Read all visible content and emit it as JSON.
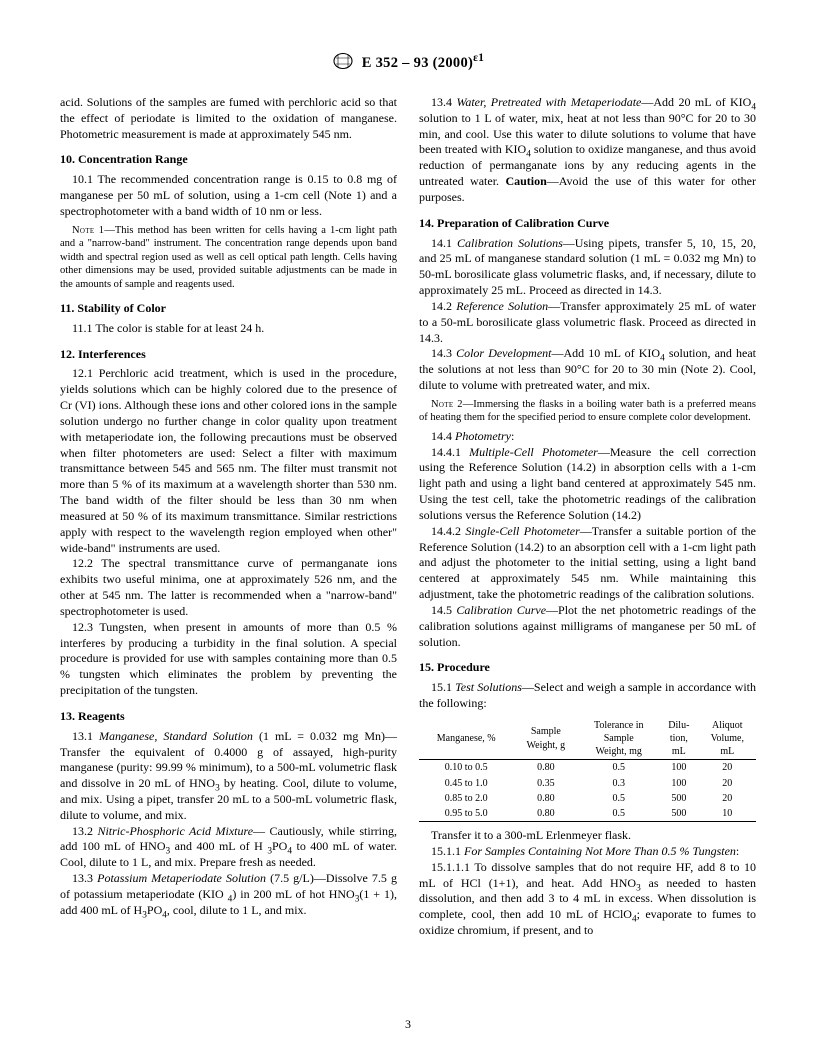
{
  "header": {
    "designation": "E 352 – 93 (2000)",
    "epsilon": "ε1"
  },
  "intro_tail": "acid. Solutions of the samples are fumed with perchloric acid so that the effect of periodate is limited to the oxidation of manganese. Photometric measurement is made at approximately 545 nm.",
  "s10": {
    "title": "10.  Concentration Range",
    "p1": "10.1 The recommended concentration range is 0.15 to 0.8 mg of manganese per 50 mL of solution, using a 1-cm cell (Note 1) and a spectrophotometer with a band width of 10 nm or less.",
    "note1_label": "Note 1",
    "note1": "—This method has been written for cells having a 1-cm light path and a \"narrow-band\" instrument. The concentration range depends upon band width and spectral region used as well as cell optical path length. Cells having other dimensions may be used, provided suitable adjustments can be made in the amounts of sample and reagents used."
  },
  "s11": {
    "title": "11.  Stability of Color",
    "p1": "11.1 The color is stable for at least 24 h."
  },
  "s12": {
    "title": "12.  Interferences",
    "p1": "12.1 Perchloric acid treatment, which is used in the procedure, yields solutions which can be highly colored due to the presence of Cr (VI) ions. Although these ions and other colored ions in the sample solution undergo no further change in color quality upon treatment with metaperiodate ion, the following precautions must be observed when filter photometers are used: Select a filter with maximum transmittance between 545 and 565 nm. The filter must transmit not more than 5 % of its maximum at a wavelength shorter than 530 nm. The band width of the filter should be less than 30 nm when measured at 50 % of its maximum transmittance. Similar restrictions apply with respect to the wavelength region employed when other\" wide-band\" instruments are used.",
    "p2": "12.2 The spectral transmittance curve of permanganate ions exhibits two useful minima, one at approximately 526 nm, and the other at 545 nm. The latter is recommended when a \"narrow-band\" spectrophotometer is used.",
    "p3": "12.3 Tungsten, when present in amounts of more than 0.5 % interferes by producing a turbidity in the final solution. A special procedure is provided for use with samples containing more than 0.5 % tungsten which eliminates the problem by preventing the precipitation of the tungsten."
  },
  "s13": {
    "title": "13.  Reagents",
    "p1a": "13.1 ",
    "p1i": "Manganese, Standard Solution",
    "p1b": " (1 mL = 0.032 mg Mn)—Transfer the equivalent of 0.4000 g of assayed, high-purity manganese (purity: 99.99 % minimum), to a 500-mL volumetric flask and dissolve in 20 mL of HNO",
    "p1c": " by heating. Cool, dilute to volume, and mix. Using a pipet, transfer 20 mL to a 500-mL volumetric flask, dilute to volume, and mix.",
    "p2a": "13.2 ",
    "p2i": "Nitric-Phosphoric Acid Mixture",
    "p2b": "— Cautiously, while stirring, add 100 mL of HNO",
    "p2c": " and 400 mL of H ",
    "p2d": " to 400 mL of water. Cool, dilute to 1 L, and mix. Prepare fresh as needed.",
    "p3a": "13.3 ",
    "p3i": "Potassium Metaperiodate Solution",
    "p3b": " (7.5 g/L)—Dissolve 7.5 g of potassium metaperiodate (KIO ",
    "p3c": ") in 200 mL of hot HNO",
    "p3d": "(1 + 1), add 400 mL of H",
    "p3e": ", cool, dilute to 1 L, and mix.",
    "p4a": "13.4 ",
    "p4i": "Water, Pretreated with Metaperiodate",
    "p4b": "—Add 20 mL of KIO",
    "p4c": " solution to 1 L of water, mix, heat at not less than 90°C for 20 to 30 min, and cool. Use this water to dilute solutions to volume that have been treated with KIO",
    "p4d": " solution to oxidize manganese, and thus avoid reduction of permanganate ions by any reducing agents in the untreated water. ",
    "p4e": "Caution",
    "p4f": "—Avoid the use of this water for other purposes."
  },
  "s14": {
    "title": "14.  Preparation of Calibration Curve",
    "p1a": "14.1 ",
    "p1i": "Calibration Solutions",
    "p1b": "—Using pipets, transfer 5, 10, 15, 20, and 25 mL of manganese standard solution (1 mL = 0.032 mg Mn) to 50-mL borosilicate glass volumetric flasks, and, if necessary, dilute to approximately 25 mL. Proceed as directed in 14.3.",
    "p2a": "14.2 ",
    "p2i": "Reference Solution",
    "p2b": "—Transfer approximately 25 mL of water to a 50-mL borosilicate glass volumetric flask. Proceed as directed in 14.3.",
    "p3a": "14.3 ",
    "p3i": "Color Development",
    "p3b": "—Add 10 mL of KIO",
    "p3c": " solution, and heat the solutions at not less than 90°C for 20 to 30 min (Note 2). Cool, dilute to volume with pretreated water, and mix.",
    "note2_label": "Note 2",
    "note2": "—Immersing the flasks in a boiling water bath is a preferred means of heating them for the specified period to ensure complete color development.",
    "p4a": "14.4 ",
    "p4i": "Photometry",
    "p4b": ":",
    "p41a": "14.4.1 ",
    "p41i": "Multiple-Cell Photometer",
    "p41b": "—Measure the cell correction using the Reference Solution (14.2) in absorption cells with a 1-cm light path and using a light band centered at approximately 545 nm. Using the test cell, take the photometric readings of the calibration solutions versus the Reference Solution (14.2)",
    "p42a": "14.4.2 ",
    "p42i": "Single-Cell Photometer",
    "p42b": "—Transfer a suitable portion of the Reference Solution (14.2) to an absorption cell with a 1-cm light path and adjust the photometer to the initial setting, using a light band centered at approximately 545 nm. While maintaining this adjustment, take the photometric readings of the calibration solutions.",
    "p5a": "14.5 ",
    "p5i": "Calibration Curve",
    "p5b": "—Plot the net photometric readings of the calibration solutions against milligrams of manganese per 50 mL of solution."
  },
  "s15": {
    "title": "15.  Procedure",
    "p1a": "15.1 ",
    "p1i": "Test Solutions",
    "p1b": "—Select and weigh a sample in accordance with the following:",
    "tbl": {
      "headers": [
        "Manganese, %",
        "Sample\nWeight, g",
        "Tolerance in\nSample\nWeight, mg",
        "Dilu-\ntion,\nmL",
        "Aliquot\nVolume,\nmL"
      ],
      "rows": [
        [
          "0.10 to 0.5",
          "0.80",
          "0.5",
          "100",
          "20"
        ],
        [
          "0.45 to 1.0",
          "0.35",
          "0.3",
          "100",
          "20"
        ],
        [
          "0.85 to 2.0",
          "0.80",
          "0.5",
          "500",
          "20"
        ],
        [
          "0.95 to 5.0",
          "0.80",
          "0.5",
          "500",
          "10"
        ]
      ]
    },
    "p_after_tbl": "Transfer it to a 300-mL Erlenmeyer flask.",
    "p111a": "15.1.1 ",
    "p111i": "For Samples Containing Not More Than 0.5 % Tungsten",
    "p111b": ":",
    "p1111a": "15.1.1.1 To dissolve samples that do not require HF, add 8 to 10 mL of HCl (1+1), and heat. Add HNO",
    "p1111b": " as needed to hasten dissolution, and then add 3 to 4 mL in excess. When dissolution is complete, cool, then add 10 mL of HClO",
    "p1111c": "; evaporate to fumes to oxidize chromium, if present, and to"
  },
  "page_number": "3"
}
